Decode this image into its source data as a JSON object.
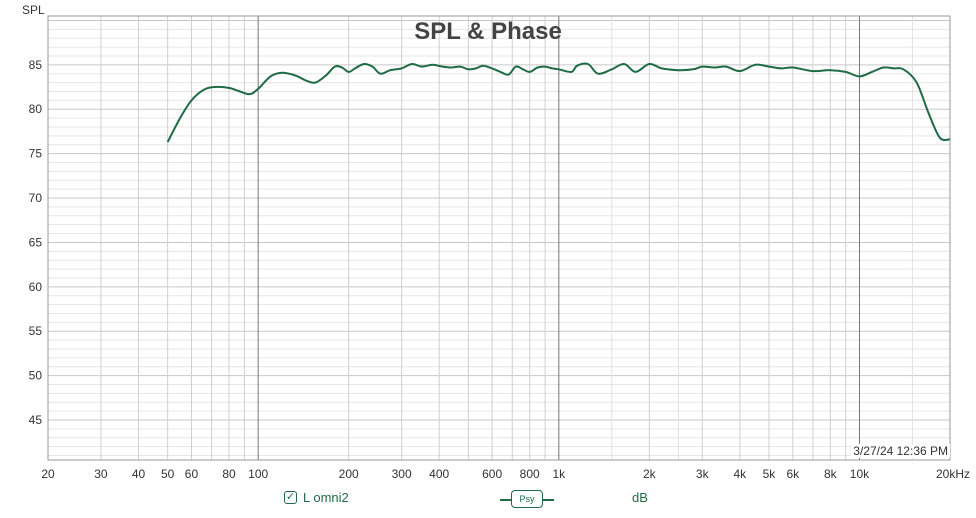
{
  "chart_data": {
    "type": "line",
    "title": "SPL & Phase",
    "ylabel": "SPL",
    "xscale": "log",
    "xlim": [
      20,
      20000
    ],
    "ylim": [
      40.5,
      90.5
    ],
    "yticks": [
      45,
      50,
      55,
      60,
      65,
      70,
      75,
      80,
      85
    ],
    "xticks": [
      {
        "v": 20,
        "label": "20"
      },
      {
        "v": 30,
        "label": "30"
      },
      {
        "v": 40,
        "label": "40"
      },
      {
        "v": 50,
        "label": "50"
      },
      {
        "v": 60,
        "label": "60"
      },
      {
        "v": 80,
        "label": "80"
      },
      {
        "v": 100,
        "label": "100"
      },
      {
        "v": 200,
        "label": "200"
      },
      {
        "v": 300,
        "label": "300"
      },
      {
        "v": 400,
        "label": "400"
      },
      {
        "v": 600,
        "label": "600"
      },
      {
        "v": 800,
        "label": "800"
      },
      {
        "v": 1000,
        "label": "1k"
      },
      {
        "v": 2000,
        "label": "2k"
      },
      {
        "v": 3000,
        "label": "3k"
      },
      {
        "v": 4000,
        "label": "4k"
      },
      {
        "v": 5000,
        "label": "5k"
      },
      {
        "v": 6000,
        "label": "6k"
      },
      {
        "v": 8000,
        "label": "8k"
      },
      {
        "v": 10000,
        "label": "10k"
      },
      {
        "v": 20000,
        "label": "20kHz"
      }
    ],
    "grid": true,
    "series": [
      {
        "name": "L omni2",
        "color": "#1f6b45",
        "points": [
          [
            50,
            76.3
          ],
          [
            55,
            79.0
          ],
          [
            60,
            81.0
          ],
          [
            66,
            82.2
          ],
          [
            72,
            82.5
          ],
          [
            80,
            82.4
          ],
          [
            87,
            82.0
          ],
          [
            94,
            81.7
          ],
          [
            100,
            82.3
          ],
          [
            110,
            83.7
          ],
          [
            120,
            84.1
          ],
          [
            133,
            83.8
          ],
          [
            145,
            83.2
          ],
          [
            155,
            83.0
          ],
          [
            168,
            83.8
          ],
          [
            180,
            84.8
          ],
          [
            190,
            84.7
          ],
          [
            200,
            84.2
          ],
          [
            210,
            84.6
          ],
          [
            225,
            85.1
          ],
          [
            240,
            84.8
          ],
          [
            255,
            84.0
          ],
          [
            275,
            84.4
          ],
          [
            300,
            84.6
          ],
          [
            325,
            85.1
          ],
          [
            350,
            84.8
          ],
          [
            380,
            85.0
          ],
          [
            410,
            84.8
          ],
          [
            440,
            84.7
          ],
          [
            470,
            84.8
          ],
          [
            500,
            84.5
          ],
          [
            530,
            84.6
          ],
          [
            560,
            84.9
          ],
          [
            600,
            84.6
          ],
          [
            640,
            84.2
          ],
          [
            680,
            83.9
          ],
          [
            720,
            84.8
          ],
          [
            760,
            84.5
          ],
          [
            800,
            84.2
          ],
          [
            850,
            84.7
          ],
          [
            900,
            84.8
          ],
          [
            950,
            84.6
          ],
          [
            1000,
            84.5
          ],
          [
            1100,
            84.2
          ],
          [
            1150,
            84.9
          ],
          [
            1250,
            85.1
          ],
          [
            1350,
            84.0
          ],
          [
            1500,
            84.5
          ],
          [
            1650,
            85.1
          ],
          [
            1800,
            84.2
          ],
          [
            2000,
            85.1
          ],
          [
            2200,
            84.6
          ],
          [
            2500,
            84.4
          ],
          [
            2800,
            84.5
          ],
          [
            3000,
            84.8
          ],
          [
            3300,
            84.7
          ],
          [
            3600,
            84.8
          ],
          [
            4000,
            84.3
          ],
          [
            4500,
            85.0
          ],
          [
            5000,
            84.8
          ],
          [
            5500,
            84.6
          ],
          [
            6000,
            84.7
          ],
          [
            7000,
            84.3
          ],
          [
            8000,
            84.4
          ],
          [
            9000,
            84.2
          ],
          [
            10000,
            83.7
          ],
          [
            11000,
            84.2
          ],
          [
            12000,
            84.7
          ],
          [
            13000,
            84.6
          ],
          [
            14000,
            84.5
          ],
          [
            15500,
            83.0
          ],
          [
            17000,
            79.5
          ],
          [
            18500,
            76.8
          ],
          [
            20000,
            76.6
          ]
        ]
      }
    ]
  },
  "annotations": {
    "timestamp": "3/27/24 12:36 PM"
  },
  "legend": {
    "checked": true,
    "series_label": "L omni2",
    "psy_label": "Psy",
    "unit_label": "dB"
  }
}
